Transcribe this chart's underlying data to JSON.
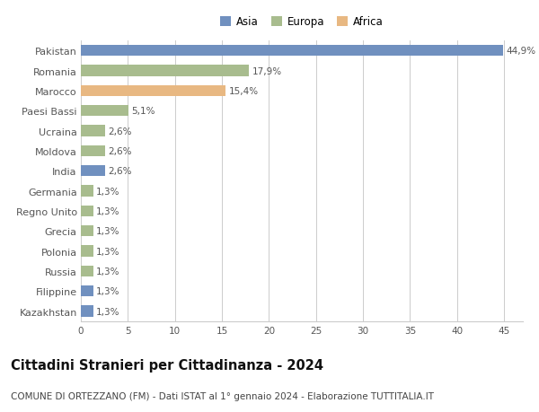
{
  "countries": [
    "Pakistan",
    "Romania",
    "Marocco",
    "Paesi Bassi",
    "Ucraina",
    "Moldova",
    "India",
    "Germania",
    "Regno Unito",
    "Grecia",
    "Polonia",
    "Russia",
    "Filippine",
    "Kazakhstan"
  ],
  "values": [
    44.9,
    17.9,
    15.4,
    5.1,
    2.6,
    2.6,
    2.6,
    1.3,
    1.3,
    1.3,
    1.3,
    1.3,
    1.3,
    1.3
  ],
  "labels": [
    "44,9%",
    "17,9%",
    "15,4%",
    "5,1%",
    "2,6%",
    "2,6%",
    "2,6%",
    "1,3%",
    "1,3%",
    "1,3%",
    "1,3%",
    "1,3%",
    "1,3%",
    "1,3%"
  ],
  "continents": [
    "Asia",
    "Europa",
    "Africa",
    "Europa",
    "Europa",
    "Europa",
    "Asia",
    "Europa",
    "Europa",
    "Europa",
    "Europa",
    "Europa",
    "Asia",
    "Asia"
  ],
  "colors": {
    "Asia": "#7090bf",
    "Europa": "#a8bc8e",
    "Africa": "#e8b882"
  },
  "xlim": [
    0,
    47
  ],
  "xticks": [
    0,
    5,
    10,
    15,
    20,
    25,
    30,
    35,
    40,
    45
  ],
  "title": "Cittadini Stranieri per Cittadinanza - 2024",
  "subtitle": "COMUNE DI ORTEZZANO (FM) - Dati ISTAT al 1° gennaio 2024 - Elaborazione TUTTITALIA.IT",
  "title_fontsize": 10.5,
  "subtitle_fontsize": 7.5,
  "background_color": "#ffffff",
  "grid_color": "#cccccc",
  "label_color": "#555555",
  "ytick_fontsize": 8.0,
  "xtick_fontsize": 7.5,
  "bar_label_fontsize": 7.5,
  "legend_fontsize": 8.5
}
